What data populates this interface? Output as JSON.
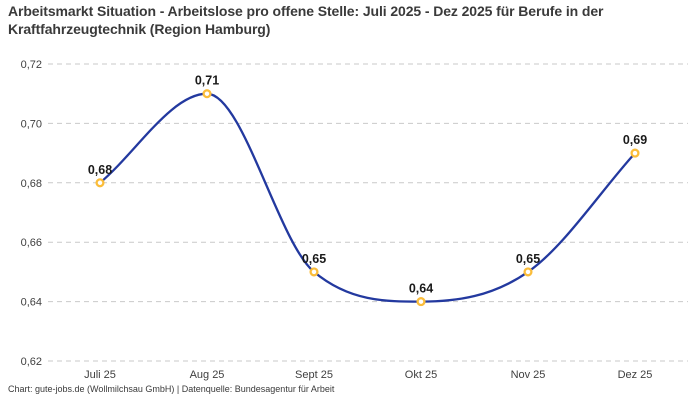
{
  "title": "Arbeitsmarkt Situation - Arbeitslose pro offene Stelle: Juli 2025 - Dez 2025 für Berufe in der Kraftfahrzeugtechnik (Region Hamburg)",
  "footer": "Chart: gute-jobs.de (Wollmilchsau GmbH) | Datenquelle: Bundesagentur für Arbeit",
  "chart_data": {
    "type": "line",
    "title": "Arbeitsmarkt Situation - Arbeitslose pro offene Stelle: Juli 2025 - Dez 2025 für Berufe in der Kraftfahrzeugtechnik (Region Hamburg)",
    "categories": [
      "Juli 25",
      "Aug 25",
      "Sept 25",
      "Okt 25",
      "Nov 25",
      "Dez 25"
    ],
    "values": [
      0.68,
      0.71,
      0.65,
      0.64,
      0.65,
      0.69
    ],
    "data_labels": [
      "0,68",
      "0,71",
      "0,65",
      "0,64",
      "0,65",
      "0,69"
    ],
    "y_ticks": [
      0.62,
      0.64,
      0.66,
      0.68,
      0.7,
      0.72
    ],
    "y_tick_labels": [
      "0,62",
      "0,64",
      "0,66",
      "0,68",
      "0,70",
      "0,72"
    ],
    "ylim": [
      0.62,
      0.72
    ],
    "xlabel": "",
    "ylabel": "",
    "grid": "horizontal-dashed",
    "legend": "none",
    "curve": "smooth-monotone",
    "colors": {
      "line": "#23399f",
      "marker_stroke": "#fbbd3a",
      "marker_fill": "#ffffff",
      "grid": "#c9c9c9",
      "tick_label": "#3f3f3f",
      "data_label": "#1a1a1a"
    }
  }
}
